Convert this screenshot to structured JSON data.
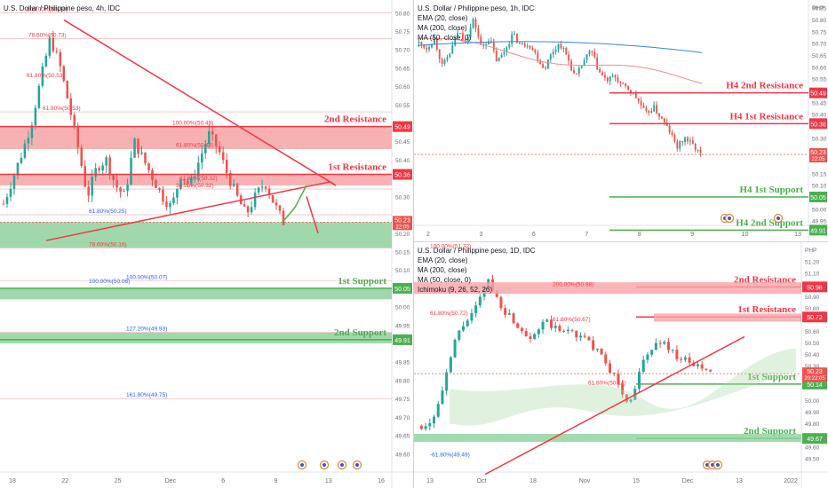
{
  "colors": {
    "up": "#26a69a",
    "down": "#ef5350",
    "resistance": "#f23645",
    "support": "#4caf50",
    "zone_red": "#f7a3a6",
    "zone_green": "#8fd19e",
    "fib_label": "#f23645",
    "fib_label_blue": "#2962ff",
    "ema": "#f48a8a",
    "ma50": "#3a87d6"
  },
  "panels": {
    "left": {
      "symbol": "U.S. Dollar / Philippine peso, 4h, IDC",
      "fib_labels": [
        "100.00%(50.80)",
        "78.60%(50.73)",
        "61.80%(50.53)",
        "61.80%(50.53)",
        "100.00%(50.49)",
        "61.80%(50.43)",
        "61.80%(50.32)",
        "38.20%(50.32)",
        "61.80%(50.25)",
        "78.60%(50.16)",
        "100.00%(50.07)",
        "100.00%(50.06)",
        "127.20%(49.93)",
        "161.80%(49.75)"
      ],
      "axis_prices": [
        "50.80",
        "50.75",
        "50.70",
        "50.65",
        "50.60",
        "50.55",
        "50.50",
        "50.45",
        "50.40",
        "50.35",
        "50.30",
        "50.25",
        "50.20",
        "50.15",
        "50.10",
        "50.05",
        "50.00",
        "49.95",
        "49.90",
        "49.85",
        "49.80",
        "49.75",
        "49.70",
        "49.65",
        "49.60",
        "49.55"
      ],
      "axis_dates": [
        "18",
        "22",
        "25",
        "Dec",
        "6",
        "9",
        "13",
        "16"
      ],
      "levels": [
        {
          "label": "2nd Resistance",
          "price_tag": "50.49"
        },
        {
          "label": "1st Resistance",
          "price_tag": "50.36"
        },
        {
          "label": "1st Support",
          "price_tag": "50.05"
        },
        {
          "label": "2nd Support",
          "price_tag": "49.91"
        }
      ],
      "current_price": "50.23",
      "countdown": "22:05"
    },
    "top_right": {
      "symbol": "U.S. Dollar / Philippine peso, 1h, IDC",
      "indicators": [
        "EMA (20, close)",
        "MA (200, close)",
        "MA (50, close, 0)"
      ],
      "currency": "PHP",
      "axis_prices": [
        "50.85",
        "50.80",
        "50.75",
        "50.70",
        "50.65",
        "50.60",
        "50.55",
        "50.50",
        "50.45",
        "50.40",
        "50.35",
        "50.30",
        "50.25",
        "50.20",
        "50.15",
        "50.10",
        "50.05",
        "50.00",
        "49.95"
      ],
      "axis_dates": [
        "2",
        "3",
        "6",
        "7",
        "8",
        "9",
        "10",
        "13"
      ],
      "levels": [
        {
          "label": "H4 2nd Resistance",
          "price_tag": "50.49"
        },
        {
          "label": "H4 1st Resistance",
          "price_tag": "50.36"
        },
        {
          "label": "H4 1st Support",
          "price_tag": "50.05"
        },
        {
          "label": "H4 2nd Support",
          "price_tag": "49.91"
        }
      ],
      "current_price": "50.23",
      "countdown": "22:05"
    },
    "bottom_right": {
      "symbol": "U.S. Dollar / Philippine peso, 1D, IDC",
      "indicators": [
        "EMA (20, close)",
        "MA (200, close)",
        "MA (50, close, 0)",
        "Ichimoku (9, 26, 52, 26)"
      ],
      "currency": "PHP",
      "fib_labels": [
        "100.00%(51.32)",
        "61.80%(50.72)",
        "200.00%(50.98)",
        "61.80%(50.67)",
        "61.80%(50.14)",
        "-61.80%(49.49)"
      ],
      "axis_prices": [
        "51.20",
        "51.10",
        "51.00",
        "50.90",
        "50.80",
        "50.70",
        "50.60",
        "50.50",
        "50.40",
        "50.30",
        "50.20",
        "50.10",
        "50.00",
        "49.90",
        "49.80",
        "49.70",
        "49.60",
        "49.50",
        "49.40"
      ],
      "axis_dates": [
        "13",
        "Oct",
        "18",
        "Nov",
        "15",
        "Dec",
        "13",
        "2022"
      ],
      "levels": [
        {
          "label": "2nd Resistance",
          "price_tag": "50.98"
        },
        {
          "label": "1st Resistance",
          "price_tag": "50.72"
        },
        {
          "label": "1st Support",
          "price_tag": "50.14"
        },
        {
          "label": "2nd Support",
          "price_tag": "49.67"
        }
      ],
      "current_price": "50.23",
      "countdown": "20:22:05"
    }
  },
  "chart_data": [
    {
      "type": "candlestick",
      "title": "U.S. Dollar / Philippine peso, 4h, IDC",
      "ylim": [
        49.55,
        50.82
      ],
      "x_ticks": [
        "18",
        "22",
        "25",
        "Dec",
        "6",
        "9",
        "13",
        "16"
      ],
      "close_path": [
        50.28,
        50.35,
        50.42,
        50.5,
        50.62,
        50.73,
        50.66,
        50.55,
        50.43,
        50.3,
        50.38,
        50.4,
        50.33,
        50.3,
        50.45,
        50.4,
        50.35,
        50.3,
        50.27,
        50.36,
        50.33,
        50.4,
        50.47,
        50.43,
        50.36,
        50.3,
        50.25,
        50.3,
        50.34,
        50.28,
        50.23
      ],
      "resistance_levels": [
        50.49,
        50.36
      ],
      "support_levels": [
        50.05,
        49.91
      ],
      "resistance_zones": [
        [
          50.43,
          50.49
        ],
        [
          50.33,
          50.36
        ]
      ],
      "support_zones": [
        [
          50.16,
          50.23
        ],
        [
          50.02,
          50.05
        ],
        [
          49.9,
          49.93
        ]
      ],
      "fib_lines": [
        50.8,
        50.73,
        50.53,
        50.49,
        50.43,
        50.32,
        50.25,
        50.16,
        50.07,
        49.93,
        49.75
      ],
      "current": 50.23
    },
    {
      "type": "candlestick",
      "title": "U.S. Dollar / Philippine peso, 1h, IDC",
      "ylim": [
        49.93,
        50.86
      ],
      "x_ticks": [
        "2",
        "3",
        "6",
        "7",
        "8",
        "9",
        "10",
        "13"
      ],
      "close_path": [
        50.7,
        50.68,
        50.72,
        50.6,
        50.66,
        50.75,
        50.71,
        50.8,
        50.68,
        50.72,
        50.62,
        50.67,
        50.74,
        50.69,
        50.7,
        50.65,
        50.59,
        50.66,
        50.7,
        50.64,
        50.55,
        50.62,
        50.67,
        50.58,
        50.54,
        50.56,
        50.52,
        50.5,
        50.46,
        50.4,
        50.43,
        50.38,
        50.33,
        50.26,
        50.3,
        50.27,
        50.23
      ],
      "resistance_levels": [
        50.49,
        50.36
      ],
      "support_levels": [
        50.05,
        49.91
      ],
      "current": 50.23
    },
    {
      "type": "candlestick",
      "title": "U.S. Dollar / Philippine peso, 1D, IDC",
      "ylim": [
        49.38,
        51.32
      ],
      "x_ticks": [
        "13",
        "Oct",
        "18",
        "Nov",
        "15",
        "Dec",
        "13",
        "2022"
      ],
      "close_path": [
        49.78,
        49.8,
        49.95,
        50.2,
        50.5,
        50.65,
        50.72,
        50.85,
        51.05,
        50.9,
        50.78,
        50.7,
        50.62,
        50.55,
        50.6,
        50.68,
        50.63,
        50.58,
        50.62,
        50.55,
        50.52,
        50.45,
        50.35,
        50.25,
        50.12,
        49.95,
        50.15,
        50.35,
        50.45,
        50.52,
        50.45,
        50.38,
        50.34,
        50.3,
        50.27,
        50.23
      ],
      "resistance_levels": [
        50.98,
        50.72
      ],
      "support_levels": [
        50.14,
        49.67
      ],
      "current": 50.23
    }
  ]
}
